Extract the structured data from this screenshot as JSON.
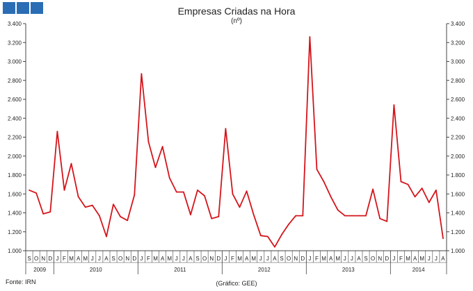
{
  "header": {
    "logo_color": "#2a6db5"
  },
  "chart_data": {
    "type": "line",
    "title": "Empresas Criadas na Hora",
    "subtitle": "(nº)",
    "xlabel": "",
    "ylabel": "",
    "ylim": [
      1000,
      3400
    ],
    "yticks": [
      "1.000",
      "1.200",
      "1.400",
      "1.600",
      "1.800",
      "2.000",
      "2.200",
      "2.400",
      "2.600",
      "2.800",
      "3.000",
      "3.200",
      "3.400"
    ],
    "grid": false,
    "line_color": "#d4141a",
    "month_labels": [
      "S",
      "O",
      "N",
      "D",
      "J",
      "F",
      "M",
      "A",
      "M",
      "J",
      "J",
      "A",
      "S",
      "O",
      "N",
      "D",
      "J",
      "F",
      "M",
      "A",
      "M",
      "J",
      "J",
      "A",
      "S",
      "O",
      "N",
      "D",
      "J",
      "F",
      "M",
      "A",
      "M",
      "J",
      "J",
      "A",
      "S",
      "O",
      "N",
      "D",
      "J",
      "F",
      "M",
      "A",
      "M",
      "J",
      "J",
      "A",
      "S",
      "O",
      "N",
      "D",
      "J",
      "F",
      "M",
      "A",
      "M",
      "J",
      "J",
      "A"
    ],
    "years": [
      {
        "label": "2009",
        "months": 4
      },
      {
        "label": "2010",
        "months": 12
      },
      {
        "label": "2011",
        "months": 12
      },
      {
        "label": "2012",
        "months": 12
      },
      {
        "label": "2013",
        "months": 12
      },
      {
        "label": "2014",
        "months": 8
      }
    ],
    "series": [
      {
        "values": [
          1640,
          1610,
          1390,
          1410,
          2260,
          1640,
          1920,
          1570,
          1460,
          1480,
          1370,
          1150,
          1490,
          1360,
          1320,
          1590,
          2870,
          2150,
          1880,
          2100,
          1770,
          1620,
          1620,
          1380,
          1640,
          1580,
          1340,
          1360,
          2290,
          1600,
          1460,
          1630,
          1380,
          1160,
          1150,
          1040,
          1170,
          1280,
          1370,
          1370,
          3260,
          1860,
          1730,
          1570,
          1430,
          1370,
          1370,
          1370,
          1370,
          1650,
          1340,
          1310,
          2540,
          1730,
          1700,
          1570,
          1660,
          1510,
          1640,
          1130
        ]
      }
    ]
  },
  "footer": {
    "source": "Fonte: IRN",
    "credit": "(Gráfico: GEE)"
  }
}
